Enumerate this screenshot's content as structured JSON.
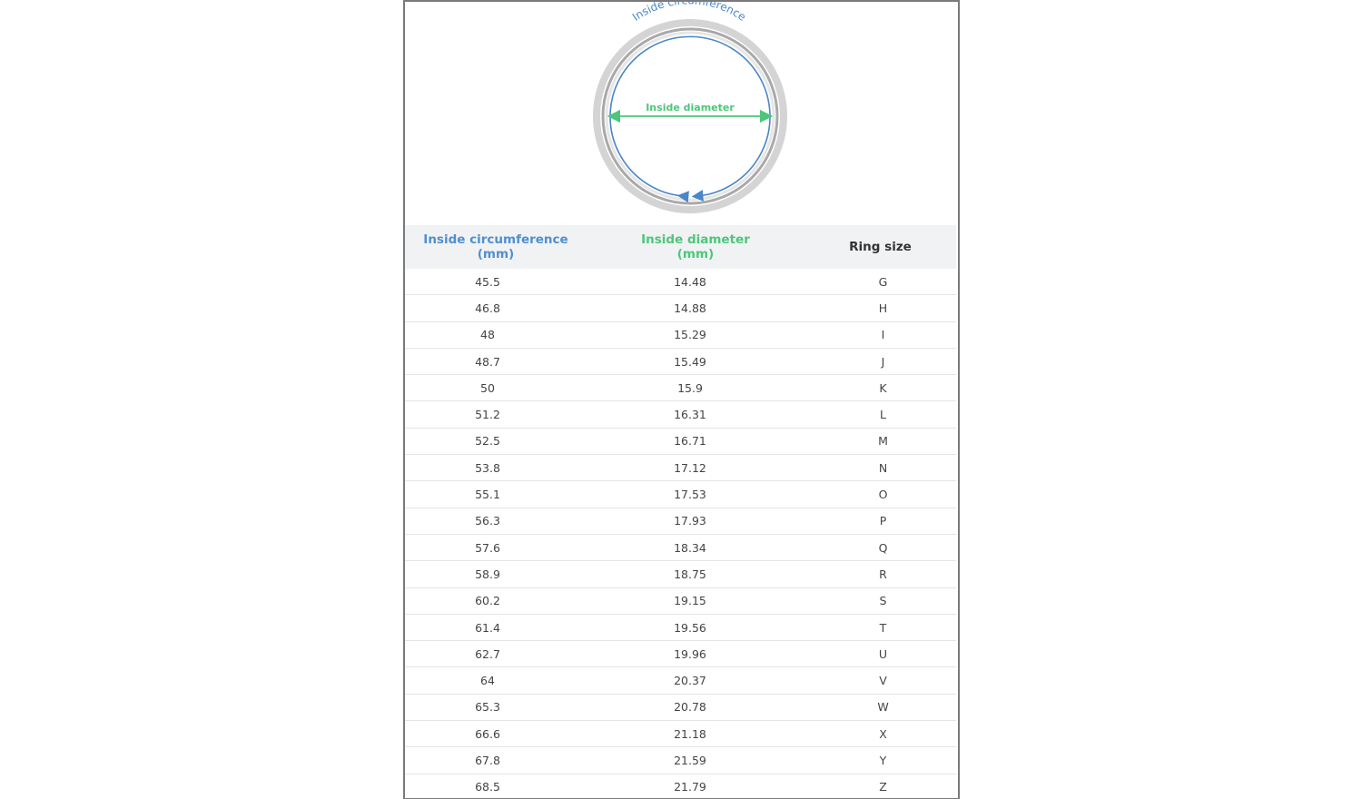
{
  "diagram": {
    "circumference_label": "Inside circumference",
    "diameter_label": "Inside diameter",
    "colors": {
      "circumference": "#4a86c8",
      "diameter": "#4cc77a",
      "ring": "#c8c8c8"
    }
  },
  "table": {
    "headers": [
      {
        "line1": "Inside circumference",
        "line2": "(mm)"
      },
      {
        "line1": "Inside diameter",
        "line2": "(mm)"
      },
      {
        "line1": "Ring size",
        "line2": ""
      }
    ],
    "rows": [
      [
        "45.5",
        "14.48",
        "G"
      ],
      [
        "46.8",
        "14.88",
        "H"
      ],
      [
        "48",
        "15.29",
        "I"
      ],
      [
        "48.7",
        "15.49",
        "J"
      ],
      [
        "50",
        "15.9",
        "K"
      ],
      [
        "51.2",
        "16.31",
        "L"
      ],
      [
        "52.5",
        "16.71",
        "M"
      ],
      [
        "53.8",
        "17.12",
        "N"
      ],
      [
        "55.1",
        "17.53",
        "O"
      ],
      [
        "56.3",
        "17.93",
        "P"
      ],
      [
        "57.6",
        "18.34",
        "Q"
      ],
      [
        "58.9",
        "18.75",
        "R"
      ],
      [
        "60.2",
        "19.15",
        "S"
      ],
      [
        "61.4",
        "19.56",
        "T"
      ],
      [
        "62.7",
        "19.96",
        "U"
      ],
      [
        "64",
        "20.37",
        "V"
      ],
      [
        "65.3",
        "20.78",
        "W"
      ],
      [
        "66.6",
        "21.18",
        "X"
      ],
      [
        "67.8",
        "21.59",
        "Y"
      ],
      [
        "68.5",
        "21.79",
        "Z"
      ]
    ]
  }
}
